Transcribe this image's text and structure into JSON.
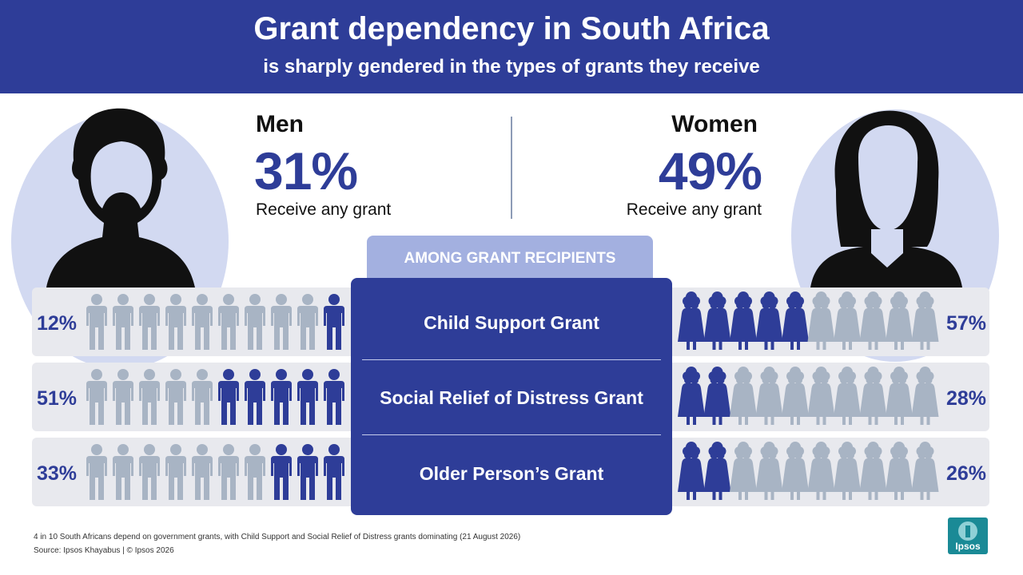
{
  "header": {
    "title": "Grant dependency in South Africa",
    "subtitle": "is sharply gendered in the types of grants they receive"
  },
  "men": {
    "label": "Men",
    "value": "31%",
    "desc": "Receive any grant"
  },
  "women": {
    "label": "Women",
    "value": "49%",
    "desc": "Receive any grant"
  },
  "panel": {
    "tab_label": "AMONG GRANT RECIPIENTS"
  },
  "colors": {
    "accent": "#2e3d98",
    "faded": "#a8b4c4",
    "band": "#e8e9ee",
    "tab": "#a3b0e0"
  },
  "chart_data": {
    "type": "bar",
    "categories": [
      "Child Support Grant",
      "Social Relief of Distress Grant",
      "Older Person’s Grant"
    ],
    "series": [
      {
        "name": "Men",
        "values": [
          12,
          51,
          33
        ]
      },
      {
        "name": "Women",
        "values": [
          57,
          28,
          26
        ]
      }
    ],
    "labels": {
      "men": [
        "12%",
        "51%",
        "33%"
      ],
      "women": [
        "57%",
        "28%",
        "26%"
      ]
    },
    "ylim": [
      0,
      100
    ]
  },
  "footer": {
    "note": "4 in 10 South Africans depend on government grants, with Child Support and Social Relief of Distress grants dominating (21 August 2026)",
    "source": "Source: Ipsos Khayabus  |  © Ipsos 2026"
  },
  "logo": {
    "text": "Ipsos"
  }
}
